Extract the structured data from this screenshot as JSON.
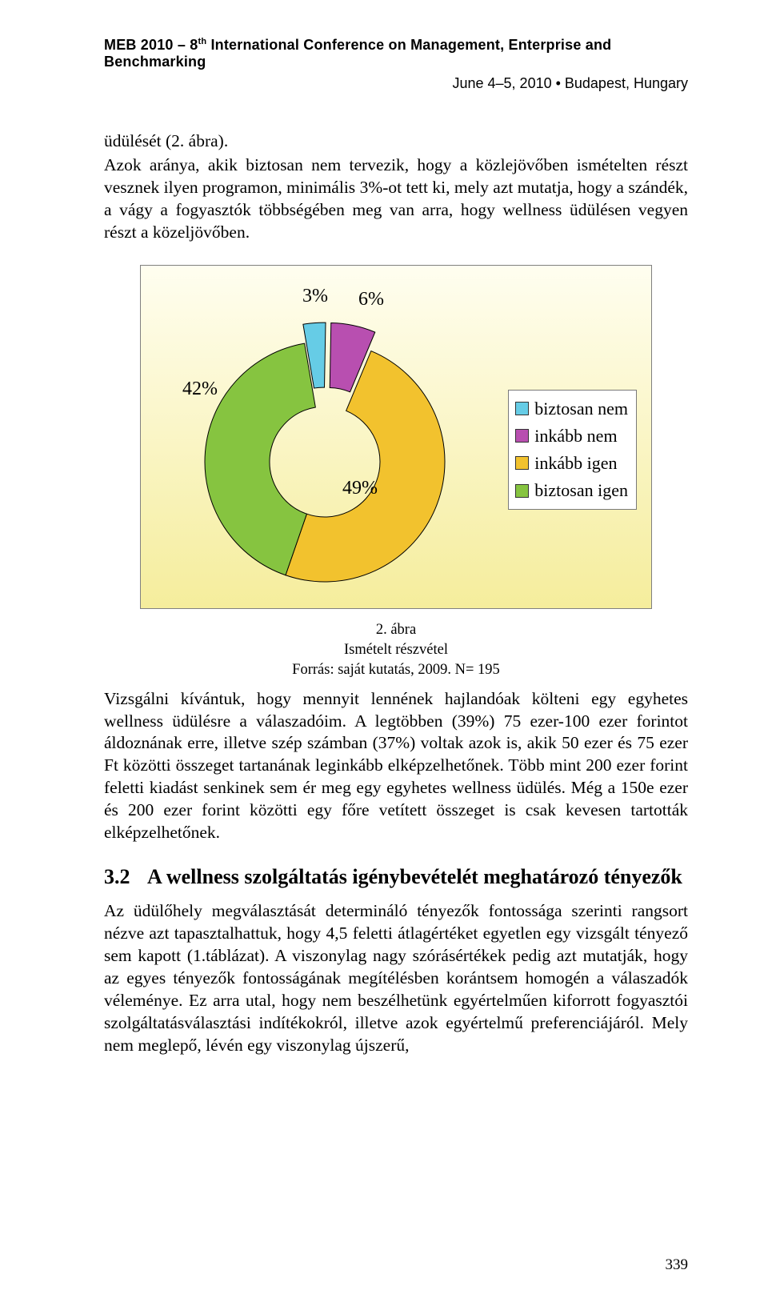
{
  "header": {
    "line": "MEB 2010 – 8ᵗʰ International Conference on Management, Enterprise and Benchmarking",
    "date": "June 4–5, 2010 • Budapest, Hungary"
  },
  "intro_line": "üdülését (2. ábra).",
  "para1": "Azok aránya, akik biztosan nem tervezik, hogy a közlejövőben ismételten részt vesznek ilyen programon, minimális 3%-ot tett ki, mely azt mutatja, hogy a szándék, a vágy a fogyasztók többségében meg van arra, hogy wellness üdülésen vegyen részt a közeljövőben.",
  "chart": {
    "type": "donut",
    "slices": [
      {
        "label": "3%",
        "value": 3,
        "color": "#66cce6",
        "name": "biztosan nem"
      },
      {
        "label": "6%",
        "value": 6,
        "color": "#b84fb0",
        "name": "inkább nem"
      },
      {
        "label": "49%",
        "value": 49,
        "color": "#f2c22e",
        "name": "inkább igen"
      },
      {
        "label": "42%",
        "value": 42,
        "color": "#86c440",
        "name": "biztosan igen"
      }
    ],
    "legend": [
      {
        "color": "#66cce6",
        "label": "biztosan nem"
      },
      {
        "color": "#b84fb0",
        "label": "inkább nem"
      },
      {
        "color": "#f2c22e",
        "label": "inkább igen"
      },
      {
        "color": "#86c440",
        "label": "biztosan igen"
      }
    ],
    "pull_out_indices": [
      0,
      1
    ],
    "background_gradient": [
      "#fffef0",
      "#f5ed9c"
    ],
    "border_color": "#808080",
    "slice_stroke": "#000000",
    "label_fontsize": 24,
    "legend_fontsize": 22,
    "inner_radius_ratio": 0.46,
    "caption_title": "2. ábra",
    "caption_sub": "Ismételt részvétel",
    "caption_src": "Forrás: saját kutatás, 2009.  N= 195"
  },
  "para2": "Vizsgálni kívántuk, hogy mennyit lennének hajlandóak költeni egy egyhetes wellness üdülésre a válaszadóim. A legtöbben (39%) 75 ezer-100 ezer forintot áldoznának erre, illetve szép számban (37%) voltak azok is, akik 50 ezer és 75 ezer Ft közötti összeget tartanának leginkább elképzelhetőnek. Több mint 200 ezer forint feletti kiadást senkinek sem ér meg egy egyhetes wellness üdülés. Még a 150e ezer és 200 ezer forint közötti egy főre vetített összeget is csak kevesen tartották elképzelhetőnek.",
  "section": {
    "num": "3.2",
    "title": "A wellness szolgáltatás igénybevételét meghatározó tényezők"
  },
  "para3": "Az üdülőhely megválasztását determináló tényezők fontossága szerinti rangsort nézve azt tapasztalhattuk, hogy 4,5 feletti átlagértéket egyetlen egy vizsgált tényező sem kapott (1.táblázat). A viszonylag nagy szórásértékek pedig azt mutatják, hogy az egyes tényezők fontosságának megítélésben korántsem homogén a válaszadók véleménye. Ez arra utal, hogy nem beszélhetünk egyértelműen kiforrott fogyasztói szolgáltatásválasztási indítékokról, illetve azok egyértelmű preferenciájáról. Mely nem meglepő, lévén egy viszonylag újszerű,",
  "page_number": "339"
}
